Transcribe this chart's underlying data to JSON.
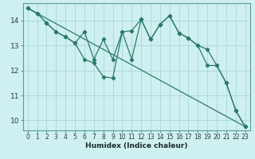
{
  "xlabel": "Humidex (Indice chaleur)",
  "bg_color": "#cff0f0",
  "line_color": "#2d7a6a",
  "grid_color": "#a8d8d8",
  "spine_color": "#5a9a9a",
  "xlim": [
    -0.5,
    23.5
  ],
  "ylim": [
    9.6,
    14.7
  ],
  "xticks": [
    0,
    1,
    2,
    3,
    4,
    5,
    6,
    7,
    8,
    9,
    10,
    11,
    12,
    13,
    14,
    15,
    16,
    17,
    18,
    19,
    20,
    21,
    22,
    23
  ],
  "yticks": [
    10,
    11,
    12,
    13,
    14
  ],
  "trend_x": [
    0,
    23
  ],
  "trend_y": [
    14.5,
    9.75
  ],
  "line2_x": [
    0,
    1,
    2,
    3,
    4,
    5,
    6,
    7,
    8,
    9,
    10,
    11,
    12,
    13,
    14,
    15,
    16,
    17,
    18,
    19,
    20,
    21,
    22,
    23
  ],
  "line2_y": [
    14.5,
    14.3,
    13.9,
    13.55,
    13.35,
    13.1,
    13.55,
    12.45,
    13.25,
    12.45,
    13.55,
    13.6,
    14.05,
    13.25,
    13.85,
    14.2,
    13.5,
    13.3,
    13.0,
    12.85,
    12.2,
    11.5,
    10.4,
    9.75
  ],
  "line3_x": [
    0,
    1,
    2,
    3,
    4,
    5,
    6,
    7,
    8,
    9,
    10,
    11,
    12,
    13,
    14,
    15,
    16,
    17,
    18,
    19,
    20,
    21,
    22,
    23
  ],
  "line3_y": [
    14.5,
    14.3,
    13.9,
    13.55,
    13.35,
    13.1,
    12.45,
    12.3,
    11.75,
    11.7,
    13.55,
    12.45,
    14.05,
    13.25,
    13.85,
    14.2,
    13.5,
    13.3,
    13.0,
    12.2,
    12.2,
    11.5,
    10.4,
    9.75
  ],
  "marker": "D",
  "markersize": 2.2,
  "linewidth": 0.9,
  "xlabel_fontsize": 6.5,
  "tick_fontsize": 5.5
}
